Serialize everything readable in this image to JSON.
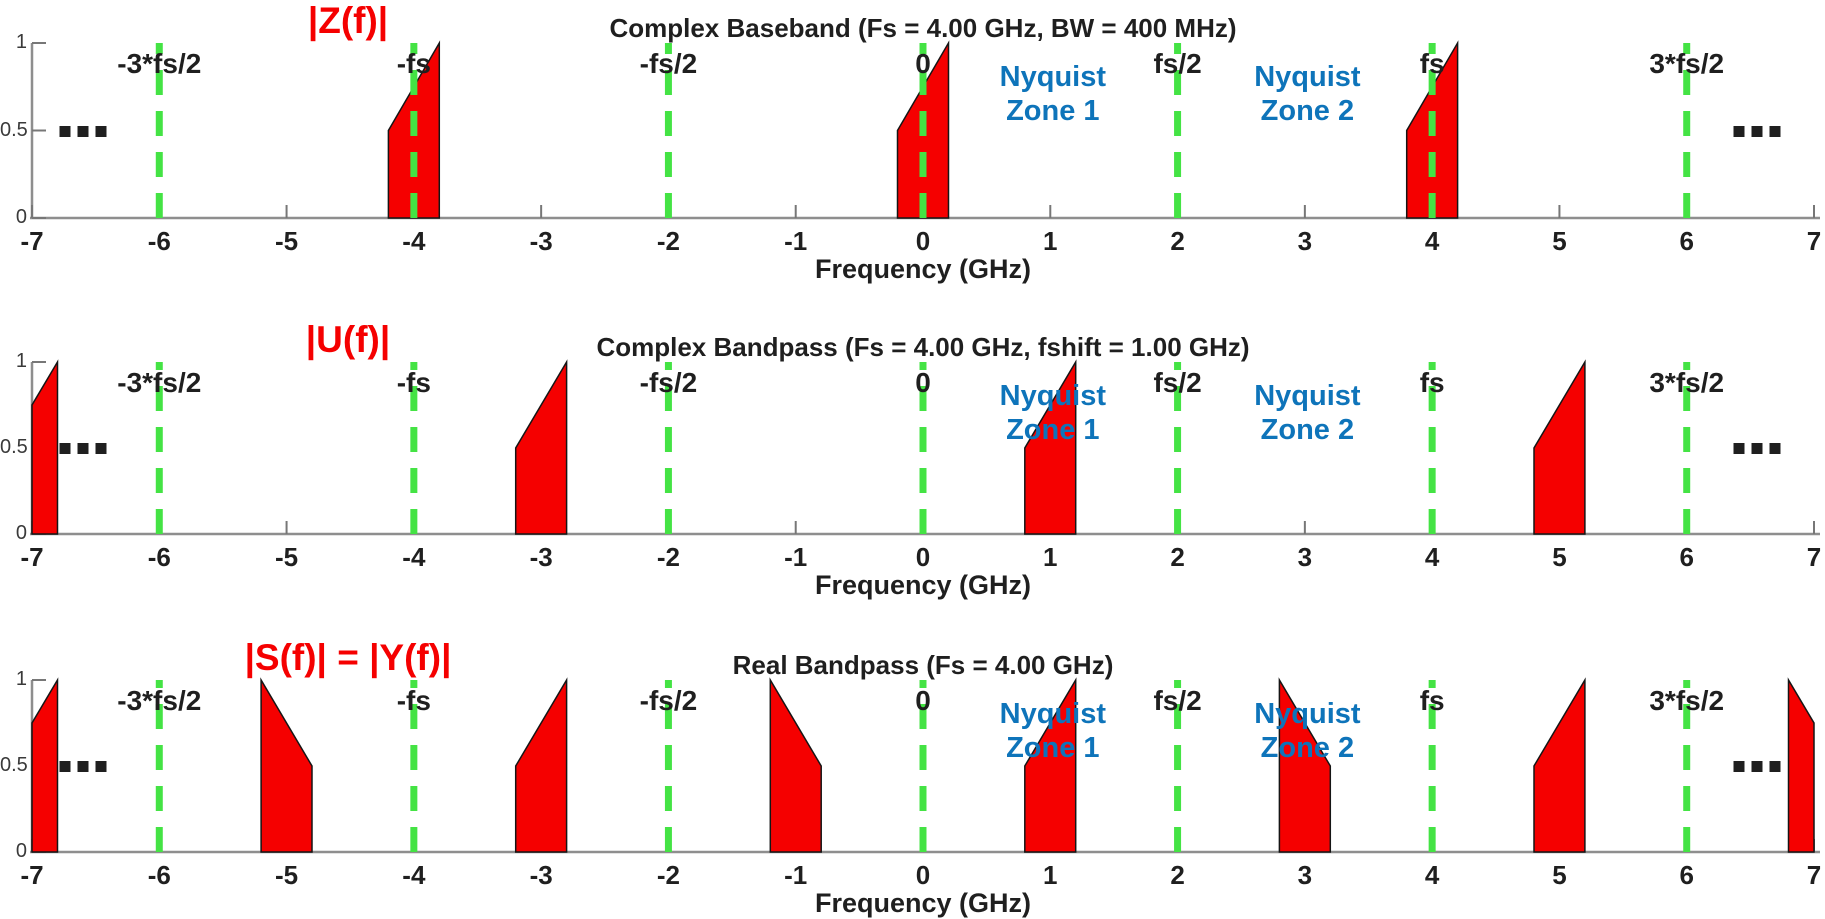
{
  "colors": {
    "red": "#f50000",
    "green": "#44e344",
    "blue": "#0e74ba",
    "text": "#1f1f1f",
    "axis": "#8e8e8e",
    "tick": "#777777",
    "ytick_text": "#3a3a3a",
    "shape_outline": "#151515"
  },
  "chart_data": [
    {
      "type": "area",
      "title": "|Z(f)|",
      "header": "Complex Baseband (Fs = 4.00 GHz, BW = 400 MHz)",
      "xlabel": "Frequency (GHz)",
      "fs_ghz": 4.0,
      "bw_mhz": 400,
      "xlim": [
        -7,
        7
      ],
      "ylim": [
        0,
        1
      ],
      "x_ticks": [
        -7,
        -6,
        -5,
        -4,
        -3,
        -2,
        -1,
        0,
        1,
        2,
        3,
        4,
        5,
        6,
        7
      ],
      "y_ticks": [
        1,
        0.5,
        0
      ],
      "nyquist_boundaries_ghz": [
        -6,
        -4,
        -2,
        0,
        2,
        4,
        6
      ],
      "boundary_labels": [
        {
          "f": -6,
          "label": "-3*fs/2"
        },
        {
          "f": -4,
          "label": "-fs"
        },
        {
          "f": -2,
          "label": "-fs/2"
        },
        {
          "f": 0,
          "label": "0"
        },
        {
          "f": 2,
          "label": "fs/2"
        },
        {
          "f": 4,
          "label": "fs"
        },
        {
          "f": 6,
          "label": "3*fs/2"
        }
      ],
      "zone_annotations": [
        {
          "f": 1.02,
          "lines": [
            "Nyquist",
            "Zone 1"
          ]
        },
        {
          "f": 3.02,
          "lines": [
            "Nyquist",
            "Zone 2"
          ]
        }
      ],
      "spectra": [
        {
          "f_start": -4.2,
          "h_start": 0.5,
          "f_end": -3.8,
          "h_end": 1.0
        },
        {
          "f_start": -0.2,
          "h_start": 0.5,
          "f_end": 0.2,
          "h_end": 1.0
        },
        {
          "f_start": 3.8,
          "h_start": 0.5,
          "f_end": 4.2,
          "h_end": 1.0
        }
      ],
      "ellipsis_f": [
        -6.6,
        6.55
      ]
    },
    {
      "type": "area",
      "title": "|U(f)|",
      "header": "Complex Bandpass (Fs = 4.00 GHz, fshift = 1.00 GHz)",
      "xlabel": "Frequency (GHz)",
      "fs_ghz": 4.0,
      "fshift_ghz": 1.0,
      "xlim": [
        -7,
        7
      ],
      "ylim": [
        0,
        1
      ],
      "x_ticks": [
        -7,
        -6,
        -5,
        -4,
        -3,
        -2,
        -1,
        0,
        1,
        2,
        3,
        4,
        5,
        6,
        7
      ],
      "y_ticks": [
        1,
        0.5,
        0
      ],
      "nyquist_boundaries_ghz": [
        -6,
        -4,
        -2,
        0,
        2,
        4,
        6
      ],
      "boundary_labels": [
        {
          "f": -6,
          "label": "-3*fs/2"
        },
        {
          "f": -4,
          "label": "-fs"
        },
        {
          "f": -2,
          "label": "-fs/2"
        },
        {
          "f": 0,
          "label": "0"
        },
        {
          "f": 2,
          "label": "fs/2"
        },
        {
          "f": 4,
          "label": "fs"
        },
        {
          "f": 6,
          "label": "3*fs/2"
        }
      ],
      "zone_annotations": [
        {
          "f": 1.02,
          "lines": [
            "Nyquist",
            "Zone 1"
          ]
        },
        {
          "f": 3.02,
          "lines": [
            "Nyquist",
            "Zone 2"
          ]
        }
      ],
      "spectra": [
        {
          "f_start": -7.2,
          "h_start": 0.5,
          "f_end": -6.8,
          "h_end": 1.0
        },
        {
          "f_start": -3.2,
          "h_start": 0.5,
          "f_end": -2.8,
          "h_end": 1.0
        },
        {
          "f_start": 0.8,
          "h_start": 0.5,
          "f_end": 1.2,
          "h_end": 1.0
        },
        {
          "f_start": 4.8,
          "h_start": 0.5,
          "f_end": 5.2,
          "h_end": 1.0
        }
      ],
      "ellipsis_f": [
        -6.6,
        6.55
      ]
    },
    {
      "type": "area",
      "title": "|S(f)| = |Y(f)|",
      "header": "Real Bandpass (Fs = 4.00 GHz)",
      "xlabel": "Frequency (GHz)",
      "fs_ghz": 4.0,
      "xlim": [
        -7,
        7
      ],
      "ylim": [
        0,
        1
      ],
      "x_ticks": [
        -7,
        -6,
        -5,
        -4,
        -3,
        -2,
        -1,
        0,
        1,
        2,
        3,
        4,
        5,
        6,
        7
      ],
      "y_ticks": [
        1,
        0.5,
        0
      ],
      "nyquist_boundaries_ghz": [
        -6,
        -4,
        -2,
        0,
        2,
        4,
        6
      ],
      "boundary_labels": [
        {
          "f": -6,
          "label": "-3*fs/2"
        },
        {
          "f": -4,
          "label": "-fs"
        },
        {
          "f": -2,
          "label": "-fs/2"
        },
        {
          "f": 0,
          "label": "0"
        },
        {
          "f": 2,
          "label": "fs/2"
        },
        {
          "f": 4,
          "label": "fs"
        },
        {
          "f": 6,
          "label": "3*fs/2"
        }
      ],
      "zone_annotations": [
        {
          "f": 1.02,
          "lines": [
            "Nyquist",
            "Zone 1"
          ]
        },
        {
          "f": 3.02,
          "lines": [
            "Nyquist",
            "Zone 2"
          ]
        }
      ],
      "spectra": [
        {
          "f_start": -7.2,
          "h_start": 0.5,
          "f_end": -6.8,
          "h_end": 1.0
        },
        {
          "f_start": -5.2,
          "h_start": 1.0,
          "f_end": -4.8,
          "h_end": 0.5
        },
        {
          "f_start": -3.2,
          "h_start": 0.5,
          "f_end": -2.8,
          "h_end": 1.0
        },
        {
          "f_start": -1.2,
          "h_start": 1.0,
          "f_end": -0.8,
          "h_end": 0.5
        },
        {
          "f_start": 0.8,
          "h_start": 0.5,
          "f_end": 1.2,
          "h_end": 1.0
        },
        {
          "f_start": 2.8,
          "h_start": 1.0,
          "f_end": 3.2,
          "h_end": 0.5
        },
        {
          "f_start": 4.8,
          "h_start": 0.5,
          "f_end": 5.2,
          "h_end": 1.0
        },
        {
          "f_start": 6.8,
          "h_start": 1.0,
          "f_end": 7.2,
          "h_end": 0.5
        }
      ],
      "ellipsis_f": [
        -6.6,
        6.55
      ]
    }
  ]
}
